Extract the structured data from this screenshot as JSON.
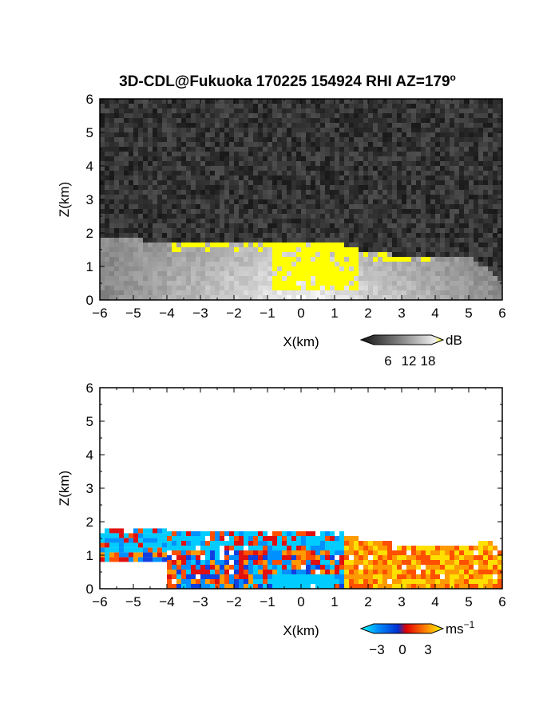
{
  "title": "3D-CDL@Fukuoka 170225 154924 RHI AZ=179",
  "title_superscript": "o",
  "colors": {
    "bg_dark": "#2a2a2a",
    "bg_noise_hi": "#4a4a4a",
    "sat_yellow": "#ffff00",
    "frame": "#000000"
  },
  "chart_data": [
    {
      "type": "heatmap",
      "name": "backscatter",
      "xlabel": "X(km)",
      "ylabel": "Z(km)",
      "xlim": [
        -6,
        6
      ],
      "ylim": [
        0,
        6
      ],
      "x_ticks": [
        "-6",
        "-5",
        "-4",
        "-3",
        "-2",
        "-1",
        "0",
        "1",
        "2",
        "3",
        "4",
        "5",
        "6"
      ],
      "y_ticks": [
        "0",
        "1",
        "2",
        "3",
        "4",
        "5",
        "6"
      ],
      "colorbar": {
        "unit": "dB",
        "ticks": [
          "6",
          "12",
          "18"
        ],
        "values": [
          6,
          12,
          18
        ],
        "scale": "grayscale",
        "max_color": "yellow"
      },
      "layer_top_km": [
        [
          -6,
          1.75
        ],
        [
          -5,
          1.72
        ],
        [
          -4,
          1.68
        ],
        [
          -3,
          1.65
        ],
        [
          -2,
          1.62
        ],
        [
          -1,
          1.58
        ],
        [
          0,
          1.6
        ],
        [
          1,
          1.62
        ],
        [
          2,
          1.35
        ],
        [
          3,
          1.25
        ],
        [
          4,
          1.15
        ],
        [
          5,
          1.2
        ],
        [
          5.5,
          0.8
        ],
        [
          6,
          0.3
        ]
      ],
      "saturated_region": "yellow (>18 dB) near x=-1..1.5 km and along layer top"
    },
    {
      "type": "heatmap",
      "name": "doppler_velocity",
      "xlabel": "X(km)",
      "ylabel": "Z(km)",
      "xlim": [
        -6,
        6
      ],
      "ylim": [
        0,
        6
      ],
      "x_ticks": [
        "-6",
        "-5",
        "-4",
        "-3",
        "-2",
        "-1",
        "0",
        "1",
        "2",
        "3",
        "4",
        "5",
        "6"
      ],
      "y_ticks": [
        "0",
        "1",
        "2",
        "3",
        "4",
        "5",
        "6"
      ],
      "colorbar": {
        "unit": "ms",
        "unit_superscript": "−1",
        "ticks": [
          "−3",
          "0",
          "3"
        ],
        "values": [
          -3,
          0,
          3
        ],
        "scale": "blue-red-yellow"
      },
      "layer_top_km": [
        [
          -6,
          1.75
        ],
        [
          -5,
          1.72
        ],
        [
          -4,
          1.68
        ],
        [
          -3,
          1.65
        ],
        [
          -2,
          1.62
        ],
        [
          -1,
          1.58
        ],
        [
          0,
          1.6
        ],
        [
          1,
          1.62
        ],
        [
          2,
          1.35
        ],
        [
          3,
          1.25
        ],
        [
          4,
          1.15
        ],
        [
          5,
          1.2
        ],
        [
          5.5,
          1.4
        ],
        [
          6,
          1.0
        ]
      ],
      "dominant_sign": "negative (blue) for x<0 aloft, positive (red/yellow) for x>1"
    }
  ]
}
